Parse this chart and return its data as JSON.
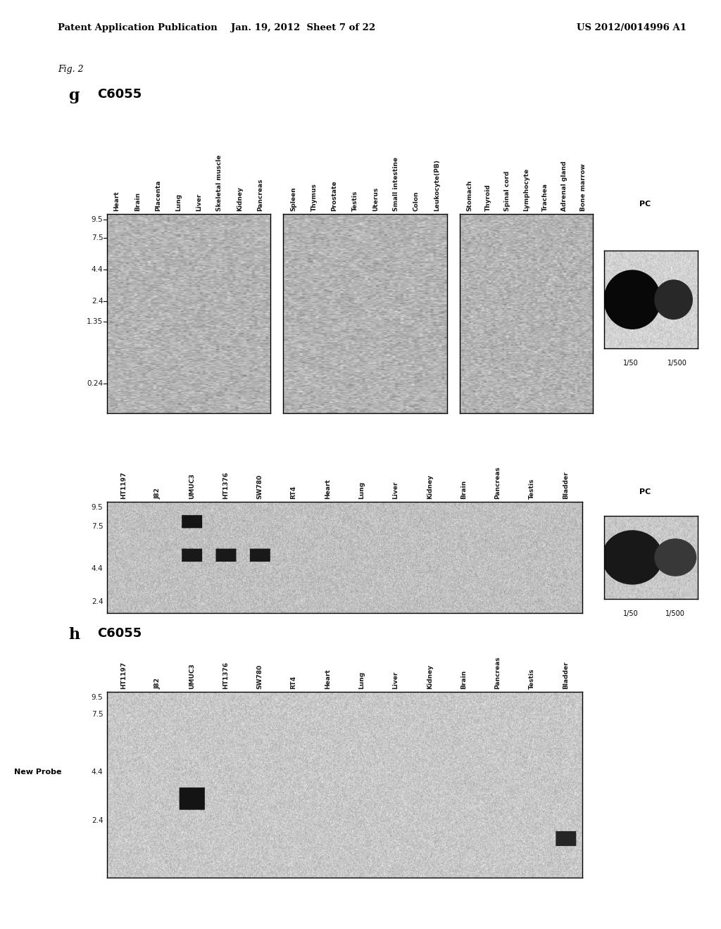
{
  "header_left": "Patent Application Publication",
  "header_center": "Jan. 19, 2012  Sheet 7 of 22",
  "header_right": "US 2012/0014996 A1",
  "fig_label": "Fig. 2",
  "panel_g_label": "g",
  "panel_g_title": "C6055",
  "panel_h_label": "h",
  "panel_h_title": "C6055",
  "section1_labels": [
    "Heart",
    "Brain",
    "Placenta",
    "Lung",
    "Liver",
    "Skeletal muscle",
    "Kidney",
    "Pancreas"
  ],
  "section2_labels": [
    "Spleen",
    "Thymus",
    "Prostate",
    "Testis",
    "Uterus",
    "Small intestine",
    "Colon",
    "Leukocyte(PB)"
  ],
  "section3_labels": [
    "Stomach",
    "Thyroid",
    "Spinal cord",
    "Lymphocyte",
    "Trachea",
    "Adrenal gland",
    "Bone marrow"
  ],
  "blot_labels": [
    "HT1197",
    "J82",
    "UMUC3",
    "HT1376",
    "SW780",
    "RT4",
    "Heart",
    "Lung",
    "Liver",
    "Kidney",
    "Brain",
    "Pancreas",
    "Testis",
    "Bladder"
  ],
  "y_ticks_top": [
    "9.5",
    "7.5",
    "4.4",
    "2.4",
    "1.35",
    "0.24"
  ],
  "y_ticks_mid": [
    "9.5",
    "7.5",
    "4.4",
    "2.4"
  ],
  "y_ticks_h": [
    "9.5",
    "7.5",
    "4.4",
    "2.4"
  ],
  "text_color": "#1a1a1a",
  "blot_mean": 0.7,
  "blot_std": 0.055
}
